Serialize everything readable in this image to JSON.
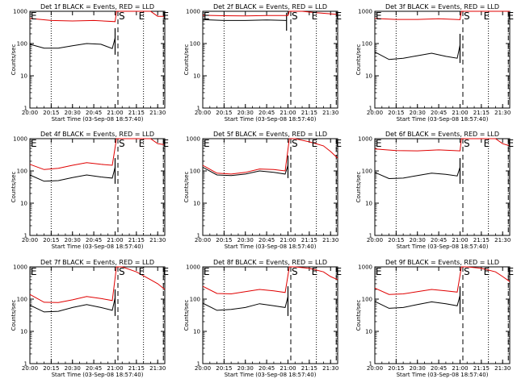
{
  "figure": {
    "xlabel": "Start Time (03-Sep-08 18:57:40)",
    "ylabel": "Counts/sec",
    "x_ticks": [
      "20:00",
      "20:15",
      "20:30",
      "20:45",
      "21:00",
      "21:15",
      "21:30"
    ],
    "y_ticks": [
      "1",
      "10",
      "100",
      "1000"
    ],
    "colors": {
      "events": "#000000",
      "lld": "#e00000",
      "axes": "#000000"
    }
  },
  "chart_data": [
    {
      "type": "line",
      "title": "Det 1f BLACK = Events, RED = LLD",
      "yscale": "log",
      "ylim": [
        1,
        1000
      ],
      "xlim": [
        "20:00",
        "21:35"
      ],
      "series": [
        {
          "name": "Events",
          "color": "#000000",
          "x": [
            "20:00",
            "20:10",
            "20:20",
            "20:30",
            "20:40",
            "20:50",
            "20:58",
            "21:00"
          ],
          "values": [
            95,
            72,
            72,
            85,
            100,
            95,
            70,
            150
          ],
          "end_spike": [
            45,
            300
          ]
        },
        {
          "name": "LLD",
          "color": "#e00000",
          "x": [
            "20:00",
            "20:15",
            "20:30",
            "20:45",
            "21:00",
            "21:01",
            "21:06",
            "21:18",
            "21:25",
            "21:30",
            "21:35"
          ],
          "values": [
            600,
            520,
            500,
            520,
            480,
            1000,
            1000,
            1000,
            1000,
            700,
            700
          ],
          "end_spike": null
        }
      ],
      "markers": [
        {
          "label": "E",
          "x": "20:00"
        },
        {
          "label": "S",
          "x": "21:02"
        },
        {
          "label": "E",
          "x": "21:16"
        },
        {
          "label": "E",
          "x": "21:33"
        }
      ],
      "vlines": [
        {
          "x": "20:15",
          "style": "dotted"
        },
        {
          "x": "21:02",
          "style": "dashed"
        },
        {
          "x": "21:20",
          "style": "dotted"
        },
        {
          "x": "21:34",
          "style": "dashed"
        }
      ]
    },
    {
      "type": "line",
      "title": "Det 2f BLACK = Events, RED = LLD",
      "yscale": "log",
      "ylim": [
        1,
        1000
      ],
      "xlim": [
        "20:00",
        "21:35"
      ],
      "series": [
        {
          "name": "Events",
          "color": "#000000",
          "x": [
            "20:00",
            "20:15",
            "20:30",
            "20:45",
            "20:59"
          ],
          "values": [
            550,
            520,
            520,
            540,
            520
          ],
          "end_spike": [
            250,
            900
          ]
        },
        {
          "name": "LLD",
          "color": "#e00000",
          "x": [
            "20:00",
            "20:15",
            "20:30",
            "20:45",
            "21:00",
            "21:01",
            "21:05",
            "21:10",
            "21:20",
            "21:35"
          ],
          "values": [
            750,
            730,
            720,
            740,
            740,
            1000,
            1000,
            1000,
            900,
            800
          ],
          "end_spike": null
        }
      ],
      "markers": [
        {
          "label": "E",
          "x": "20:00"
        },
        {
          "label": "S",
          "x": "21:02"
        },
        {
          "label": "E",
          "x": "21:16"
        },
        {
          "label": "E",
          "x": "21:33"
        }
      ],
      "vlines": [
        {
          "x": "20:15",
          "style": "dotted"
        },
        {
          "x": "21:02",
          "style": "dashed"
        },
        {
          "x": "21:20",
          "style": "dotted"
        },
        {
          "x": "21:34",
          "style": "dashed"
        }
      ]
    },
    {
      "type": "line",
      "title": "Det 3f BLACK = Events, RED = LLD",
      "yscale": "log",
      "ylim": [
        1,
        1000
      ],
      "xlim": [
        "20:00",
        "21:35"
      ],
      "series": [
        {
          "name": "Events",
          "color": "#000000",
          "x": [
            "20:00",
            "20:10",
            "20:20",
            "20:30",
            "20:40",
            "20:50",
            "20:58",
            "21:00"
          ],
          "values": [
            55,
            32,
            35,
            42,
            50,
            40,
            35,
            90
          ],
          "end_spike": [
            25,
            200
          ]
        },
        {
          "name": "LLD",
          "color": "#e00000",
          "x": [
            "20:00",
            "20:15",
            "20:30",
            "20:45",
            "21:00",
            "21:01",
            "21:08",
            "21:20",
            "21:35"
          ],
          "values": [
            600,
            560,
            560,
            590,
            550,
            1000,
            1000,
            1000,
            1000
          ],
          "end_spike": null
        }
      ],
      "markers": [
        {
          "label": "E",
          "x": "20:00"
        },
        {
          "label": "S",
          "x": "21:02"
        },
        {
          "label": "E",
          "x": "21:16"
        },
        {
          "label": "E",
          "x": "21:33"
        }
      ],
      "vlines": [
        {
          "x": "20:15",
          "style": "dotted"
        },
        {
          "x": "21:02",
          "style": "dashed"
        },
        {
          "x": "21:20",
          "style": "dotted"
        },
        {
          "x": "21:34",
          "style": "dashed"
        }
      ]
    },
    {
      "type": "line",
      "title": "Det 4f BLACK = Events, RED = LLD",
      "yscale": "log",
      "ylim": [
        1,
        1000
      ],
      "xlim": [
        "20:00",
        "21:35"
      ],
      "series": [
        {
          "name": "Events",
          "color": "#000000",
          "x": [
            "20:00",
            "20:10",
            "20:20",
            "20:30",
            "20:40",
            "20:50",
            "20:58",
            "21:00"
          ],
          "values": [
            75,
            48,
            50,
            62,
            75,
            65,
            60,
            130
          ],
          "end_spike": [
            40,
            250
          ]
        },
        {
          "name": "LLD",
          "color": "#e00000",
          "x": [
            "20:00",
            "20:10",
            "20:20",
            "20:30",
            "20:40",
            "20:50",
            "20:58",
            "21:01",
            "21:05",
            "21:15",
            "21:25",
            "21:30",
            "21:35"
          ],
          "values": [
            160,
            110,
            120,
            150,
            180,
            160,
            150,
            1000,
            1000,
            1000,
            1000,
            700,
            650
          ],
          "end_spike": null
        }
      ],
      "markers": [
        {
          "label": "E",
          "x": "20:00"
        },
        {
          "label": "S",
          "x": "21:02"
        },
        {
          "label": "E",
          "x": "21:16"
        },
        {
          "label": "E",
          "x": "21:33"
        }
      ],
      "vlines": [
        {
          "x": "20:15",
          "style": "dotted"
        },
        {
          "x": "21:02",
          "style": "dashed"
        },
        {
          "x": "21:20",
          "style": "dotted"
        },
        {
          "x": "21:34",
          "style": "dashed"
        }
      ]
    },
    {
      "type": "line",
      "title": "Det 5f BLACK = Events, RED = LLD",
      "yscale": "log",
      "ylim": [
        1,
        1000
      ],
      "xlim": [
        "20:00",
        "21:35"
      ],
      "series": [
        {
          "name": "Events",
          "color": "#000000",
          "x": [
            "20:00",
            "20:10",
            "20:20",
            "20:30",
            "20:40",
            "20:50",
            "20:58",
            "21:00"
          ],
          "values": [
            130,
            75,
            72,
            80,
            100,
            90,
            80,
            150
          ],
          "end_spike": [
            60,
            300
          ]
        },
        {
          "name": "LLD",
          "color": "#e00000",
          "x": [
            "20:00",
            "20:10",
            "20:20",
            "20:30",
            "20:40",
            "20:50",
            "20:58",
            "21:01",
            "21:05",
            "21:15",
            "21:25",
            "21:30",
            "21:35"
          ],
          "values": [
            150,
            85,
            80,
            90,
            115,
            110,
            100,
            1000,
            1000,
            800,
            600,
            400,
            250
          ],
          "end_spike": null
        }
      ],
      "markers": [
        {
          "label": "E",
          "x": "20:00"
        },
        {
          "label": "S",
          "x": "21:02"
        },
        {
          "label": "E",
          "x": "21:16"
        },
        {
          "label": "E",
          "x": "21:33"
        }
      ],
      "vlines": [
        {
          "x": "20:15",
          "style": "dotted"
        },
        {
          "x": "21:02",
          "style": "dashed"
        },
        {
          "x": "21:20",
          "style": "dotted"
        },
        {
          "x": "21:34",
          "style": "dashed"
        }
      ]
    },
    {
      "type": "line",
      "title": "Det 6f BLACK = Events, RED = LLD",
      "yscale": "log",
      "ylim": [
        1,
        1000
      ],
      "xlim": [
        "20:00",
        "21:35"
      ],
      "series": [
        {
          "name": "Events",
          "color": "#000000",
          "x": [
            "20:00",
            "20:10",
            "20:20",
            "20:30",
            "20:40",
            "20:50",
            "20:58",
            "21:00"
          ],
          "values": [
            90,
            58,
            60,
            72,
            85,
            78,
            70,
            130
          ],
          "end_spike": [
            40,
            250
          ]
        },
        {
          "name": "LLD",
          "color": "#e00000",
          "x": [
            "20:00",
            "20:15",
            "20:30",
            "20:45",
            "21:00",
            "21:01",
            "21:10",
            "21:20",
            "21:25",
            "21:30",
            "21:35"
          ],
          "values": [
            480,
            430,
            420,
            450,
            420,
            1000,
            1000,
            1000,
            1000,
            700,
            600
          ],
          "end_spike": null
        }
      ],
      "markers": [
        {
          "label": "E",
          "x": "20:00"
        },
        {
          "label": "S",
          "x": "21:02"
        },
        {
          "label": "E",
          "x": "21:16"
        },
        {
          "label": "E",
          "x": "21:33"
        }
      ],
      "vlines": [
        {
          "x": "20:15",
          "style": "dotted"
        },
        {
          "x": "21:02",
          "style": "dashed"
        },
        {
          "x": "21:20",
          "style": "dotted"
        },
        {
          "x": "21:34",
          "style": "dashed"
        }
      ]
    },
    {
      "type": "line",
      "title": "Det 7f BLACK = Events, RED = LLD",
      "yscale": "log",
      "ylim": [
        1,
        1000
      ],
      "xlim": [
        "20:00",
        "21:35"
      ],
      "series": [
        {
          "name": "Events",
          "color": "#000000",
          "x": [
            "20:00",
            "20:10",
            "20:20",
            "20:30",
            "20:40",
            "20:50",
            "20:58",
            "21:00"
          ],
          "values": [
            65,
            40,
            42,
            55,
            68,
            55,
            45,
            110
          ],
          "end_spike": [
            30,
            200
          ]
        },
        {
          "name": "LLD",
          "color": "#e00000",
          "x": [
            "20:00",
            "20:10",
            "20:20",
            "20:30",
            "20:40",
            "20:50",
            "20:58",
            "21:01",
            "21:05",
            "21:15",
            "21:25",
            "21:30",
            "21:35"
          ],
          "values": [
            140,
            80,
            78,
            95,
            120,
            105,
            90,
            1000,
            1000,
            700,
            400,
            300,
            200
          ],
          "end_spike": null
        }
      ],
      "markers": [
        {
          "label": "E",
          "x": "20:00"
        },
        {
          "label": "S",
          "x": "21:02"
        },
        {
          "label": "E",
          "x": "21:16"
        },
        {
          "label": "E",
          "x": "21:33"
        }
      ],
      "vlines": [
        {
          "x": "20:15",
          "style": "dotted"
        },
        {
          "x": "21:02",
          "style": "dashed"
        },
        {
          "x": "21:20",
          "style": "dotted"
        },
        {
          "x": "21:34",
          "style": "dashed"
        }
      ]
    },
    {
      "type": "line",
      "title": "Det 8f BLACK = Events, RED = LLD",
      "yscale": "log",
      "ylim": [
        1,
        1000
      ],
      "xlim": [
        "20:00",
        "21:35"
      ],
      "series": [
        {
          "name": "Events",
          "color": "#000000",
          "x": [
            "20:00",
            "20:10",
            "20:20",
            "20:30",
            "20:40",
            "20:50",
            "20:58",
            "21:00"
          ],
          "values": [
            75,
            45,
            48,
            55,
            72,
            62,
            55,
            120
          ],
          "end_spike": [
            30,
            250
          ]
        },
        {
          "name": "LLD",
          "color": "#e00000",
          "x": [
            "20:00",
            "20:10",
            "20:20",
            "20:30",
            "20:40",
            "20:50",
            "20:58",
            "21:01",
            "21:05",
            "21:15",
            "21:25",
            "21:30",
            "21:35"
          ],
          "values": [
            250,
            150,
            145,
            170,
            200,
            180,
            160,
            1000,
            1000,
            900,
            700,
            500,
            400
          ],
          "end_spike": null
        }
      ],
      "markers": [
        {
          "label": "E",
          "x": "20:00"
        },
        {
          "label": "S",
          "x": "21:02"
        },
        {
          "label": "E",
          "x": "21:16"
        },
        {
          "label": "E",
          "x": "21:33"
        }
      ],
      "vlines": [
        {
          "x": "20:15",
          "style": "dotted"
        },
        {
          "x": "21:02",
          "style": "dashed"
        },
        {
          "x": "21:20",
          "style": "dotted"
        },
        {
          "x": "21:34",
          "style": "dashed"
        }
      ]
    },
    {
      "type": "line",
      "title": "Det 9f BLACK = Events, RED = LLD",
      "yscale": "log",
      "ylim": [
        1,
        1000
      ],
      "xlim": [
        "20:00",
        "21:35"
      ],
      "series": [
        {
          "name": "Events",
          "color": "#000000",
          "x": [
            "20:00",
            "20:10",
            "20:20",
            "20:30",
            "20:40",
            "20:50",
            "20:58",
            "21:00"
          ],
          "values": [
            85,
            52,
            55,
            68,
            82,
            72,
            62,
            130
          ],
          "end_spike": [
            35,
            250
          ]
        },
        {
          "name": "LLD",
          "color": "#e00000",
          "x": [
            "20:00",
            "20:10",
            "20:20",
            "20:30",
            "20:40",
            "20:50",
            "20:58",
            "21:01",
            "21:05",
            "21:15",
            "21:25",
            "21:30",
            "21:35"
          ],
          "values": [
            220,
            140,
            145,
            170,
            200,
            180,
            165,
            1000,
            1000,
            900,
            700,
            500,
            350
          ],
          "end_spike": null
        }
      ],
      "markers": [
        {
          "label": "E",
          "x": "20:00"
        },
        {
          "label": "S",
          "x": "21:02"
        },
        {
          "label": "E",
          "x": "21:16"
        },
        {
          "label": "E",
          "x": "21:33"
        }
      ],
      "vlines": [
        {
          "x": "20:15",
          "style": "dotted"
        },
        {
          "x": "21:02",
          "style": "dashed"
        },
        {
          "x": "21:20",
          "style": "dotted"
        },
        {
          "x": "21:34",
          "style": "dashed"
        }
      ]
    }
  ]
}
